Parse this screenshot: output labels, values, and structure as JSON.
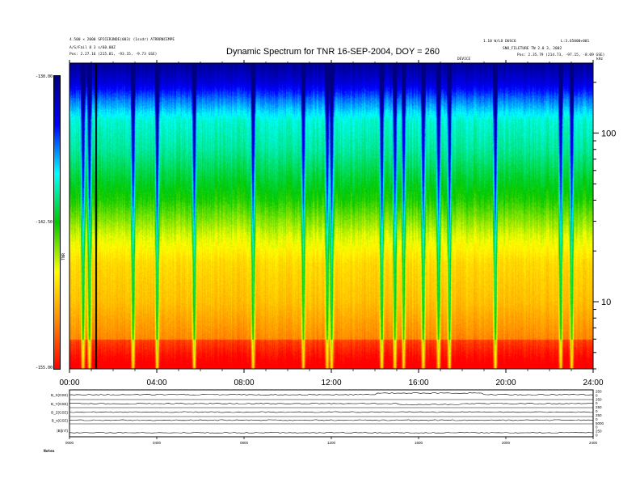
{
  "header": {
    "title": "Dynamic Spectrum for TNR 16-SEP-2004, DOY = 260",
    "left_line1": "4.500 × 2000 SPICER3NDE(003) (1ssdr) ATRRRNCEMPE",
    "left_line2": "A/S/Fail 8 3 s/60.00Z",
    "left_line3": "Pos: 2.27.16 (215.81, -93.15, -9.73 GSE)",
    "right_line1": "1.10 W/LO DUSC6",
    "right_line2": "L:3.65000+001",
    "right_line3": "SNO_FILETURE TN 2.0 3, 2002",
    "right_line4": "Pos: 2.35.79 (214.73, -97.15, -8.09 GSE)",
    "right_mark": "kHz",
    "mid_mark": "DEVICE"
  },
  "colorbar": {
    "unit_label": "TNR",
    "ticks": [
      "-130.00",
      "-142.50",
      "-155.00"
    ],
    "stops": [
      "#ff0000",
      "#ff8c00",
      "#ffff00",
      "#00c800",
      "#00ffff",
      "#0000ff",
      "#000080"
    ]
  },
  "bottom_panel": {
    "labels": [
      "B_X(GSE)",
      "B_Y(GSE)",
      "B_Z(GSE)",
      "B_x(GSE)",
      "|B|(nT)"
    ],
    "right_ticks": [
      "250",
      "0",
      "250",
      "0",
      "250",
      "0",
      "250",
      "0",
      "5000",
      "0",
      "250",
      "0"
    ],
    "x_ticks": [
      "0000",
      "0400",
      "0800",
      "1200",
      "1600",
      "2000",
      "2400"
    ],
    "footer_label": "Notes"
  },
  "chart_data": {
    "type": "heatmap",
    "title": "Dynamic Spectrum for TNR 16-SEP-2004, DOY = 260",
    "xlabel": "",
    "ylabel": "kHz",
    "x_ticks": [
      "00:00",
      "04:00",
      "08:00",
      "12:00",
      "16:00",
      "20:00",
      "24:00"
    ],
    "xlim_hours": [
      0,
      24
    ],
    "y_ticks": [
      "100",
      "10"
    ],
    "y_scale": "log",
    "ylim_khz": [
      4,
      260
    ],
    "colorbar_ticks": [
      "-130.00",
      "-142.50",
      "-155.00"
    ],
    "colorbar_range": [
      -155,
      -130
    ],
    "series": [
      {
        "freq_khz": [
          4,
          6,
          10,
          17,
          25,
          40,
          80,
          120,
          160,
          200,
          250
        ],
        "intensity": [
          -154,
          -151,
          -149,
          -148,
          -146,
          -143,
          -140,
          -139,
          -136,
          -133,
          -131
        ]
      }
    ],
    "bursts_hours": [
      0.6,
      0.9,
      2.9,
      4.0,
      5.7,
      8.4,
      10.7,
      11.8,
      12.0,
      14.3,
      14.9,
      15.3,
      16.2,
      16.9,
      17.4,
      19.5,
      22.5,
      23.0
    ],
    "data_gap_hours": [
      1.2
    ],
    "legend": "none"
  }
}
